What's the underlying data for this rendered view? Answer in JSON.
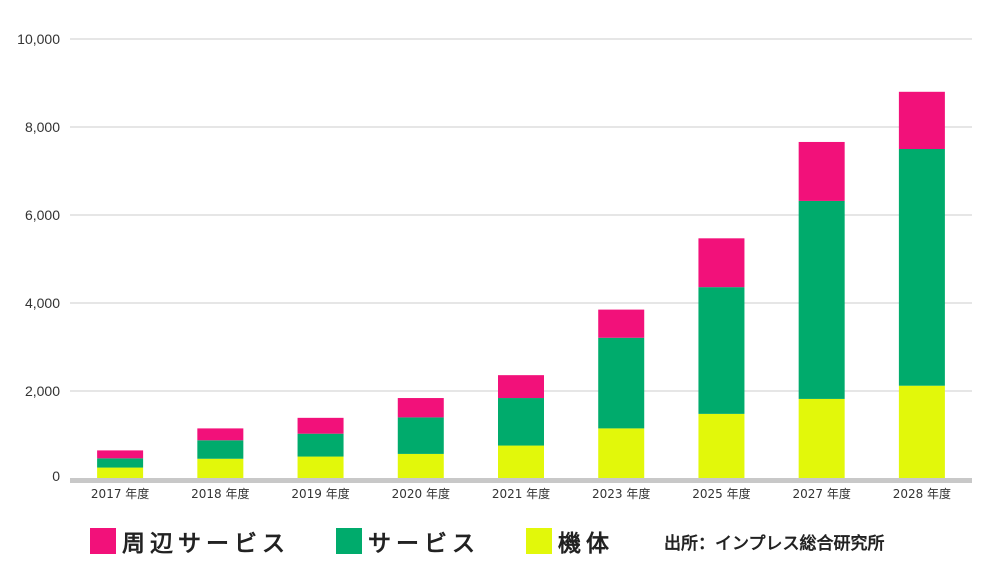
{
  "chart_data": {
    "type": "bar",
    "stacked": true,
    "categories": [
      "2017 年度",
      "2018 年度",
      "2019 年度",
      "2020 年度",
      "2021 年度",
      "2023 年度",
      "2025 年度",
      "2027 年度",
      "2028 年度"
    ],
    "series": [
      {
        "name": "機体",
        "color": "#e2f80a",
        "values": [
          260,
          460,
          510,
          570,
          760,
          1150,
          1480,
          1820,
          2120
        ]
      },
      {
        "name": "サービス",
        "color": "#00ab6c",
        "values": [
          210,
          420,
          520,
          830,
          1080,
          2060,
          2880,
          4500,
          5380
        ]
      },
      {
        "name": "周辺サービス",
        "color": "#f2117a",
        "values": [
          180,
          270,
          360,
          440,
          520,
          640,
          1110,
          1340,
          1300
        ]
      }
    ],
    "y_ticks": [
      "0",
      "2,000",
      "4,000",
      "6,000",
      "8,000",
      "10,000"
    ],
    "ylim": [
      0,
      10000
    ],
    "grid": true,
    "legend_order": [
      "周辺サービス",
      "サービス",
      "機体"
    ],
    "legend_position": "bottom",
    "title": "",
    "xlabel": "",
    "ylabel": ""
  },
  "legend": {
    "items": [
      {
        "label": "周辺サービス",
        "color": "#f2117a"
      },
      {
        "label": "サービス",
        "color": "#00ab6c"
      },
      {
        "label": "機体",
        "color": "#e2f80a"
      }
    ],
    "source": "出所：インプレス総合研究所"
  },
  "colors": {
    "grid": "#cccccc",
    "baseline": "#c8c8c8",
    "text": "#333333"
  }
}
